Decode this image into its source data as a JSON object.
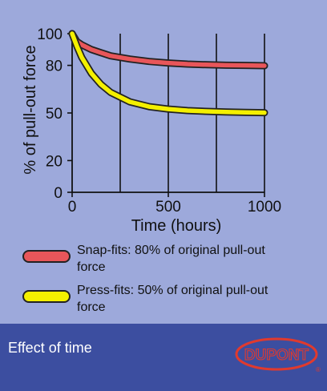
{
  "chart_data": {
    "type": "line",
    "xlabel": "Time (hours)",
    "ylabel": "% of pull-out force",
    "xlim": [
      0,
      1000
    ],
    "ylim": [
      0,
      100
    ],
    "x_ticks": [
      0,
      500,
      1000
    ],
    "y_ticks": [
      0,
      20,
      50,
      80,
      100
    ],
    "grid": true,
    "series": [
      {
        "name": "Snap-fits: 80% of original pull-out force",
        "color": "#e8565a",
        "x": [
          0,
          25,
          50,
          100,
          150,
          200,
          300,
          400,
          500,
          600,
          700,
          800,
          900,
          1000
        ],
        "y": [
          100,
          95,
          93,
          90,
          88,
          86,
          84,
          82.5,
          81.5,
          80.8,
          80.4,
          80.1,
          80,
          79.8
        ]
      },
      {
        "name": "Press-fits: 50% of original pull-out force",
        "color": "#f4f000",
        "x": [
          0,
          25,
          50,
          100,
          150,
          200,
          300,
          400,
          500,
          600,
          700,
          800,
          900,
          1000
        ],
        "y": [
          100,
          92,
          85,
          75,
          68,
          63,
          57,
          54,
          52.5,
          51.5,
          51,
          50.6,
          50.4,
          50.2
        ]
      }
    ]
  },
  "footer": {
    "caption": "Effect of time",
    "logo_text": "DUPONT"
  }
}
